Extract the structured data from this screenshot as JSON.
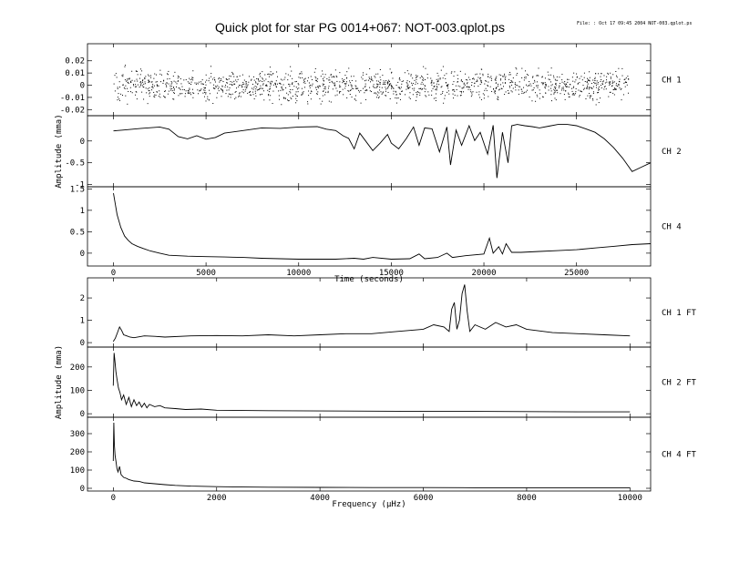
{
  "title": "Quick plot for star PG 0014+067:  NOT-003.qplot.ps",
  "file_info": "File: : Oct 17 09:45 2004   NOT-003.qplot.ps",
  "chart_data": [
    {
      "type": "scatter",
      "channel_label": "CH 1",
      "xlabel": "",
      "ylabel": "",
      "xlim": [
        -1400,
        29000
      ],
      "ylim": [
        -0.025,
        0.034
      ],
      "xticks": [
        0,
        5000,
        10000,
        15000,
        20000,
        25000
      ],
      "yticks": [
        -0.02,
        -0.01,
        0,
        0.01,
        0.02
      ],
      "ytick_labels": [
        "-0.02",
        "-0.01",
        "0",
        "0.01",
        "0.02"
      ],
      "x_range": [
        0,
        27800
      ],
      "noise_band": [
        -0.018,
        0.018
      ],
      "points": [
        [
          1200,
          0.012
        ],
        [
          4000,
          -0.006
        ],
        [
          8500,
          0.009
        ],
        [
          13000,
          -0.011
        ],
        [
          17500,
          0.004
        ],
        [
          22000,
          -0.003
        ],
        [
          26000,
          0.01
        ]
      ]
    },
    {
      "type": "line",
      "channel_label": "CH 2",
      "xlabel": "",
      "ylabel": "Amplitude (mma)",
      "xlim": [
        -1400,
        29000
      ],
      "ylim": [
        -1.05,
        0.58
      ],
      "xticks": [
        0,
        5000,
        10000,
        15000,
        20000,
        25000
      ],
      "yticks": [
        -1,
        -0.5,
        0
      ],
      "ytick_labels": [
        "-1",
        "-0.5",
        "0"
      ],
      "x": [
        0,
        500,
        1500,
        2500,
        3000,
        3500,
        4000,
        4500,
        5000,
        5500,
        6000,
        7000,
        8000,
        9000,
        10000,
        11000,
        11500,
        12000,
        12400,
        12700,
        13000,
        13300,
        13600,
        14000,
        14400,
        14800,
        15000,
        15400,
        15800,
        16200,
        16500,
        16800,
        17200,
        17600,
        18000,
        18200,
        18500,
        18800,
        19200,
        19500,
        19800,
        20200,
        20500,
        20700,
        21000,
        21300,
        21500,
        21800,
        22200,
        22600,
        23000,
        23500,
        24000,
        24500,
        25000,
        25500,
        26000,
        26500,
        27000,
        27500,
        28000,
        28500,
        29000
      ],
      "y": [
        0.23,
        0.25,
        0.29,
        0.32,
        0.27,
        0.1,
        0.05,
        0.12,
        0.04,
        0.08,
        0.18,
        0.24,
        0.3,
        0.29,
        0.32,
        0.33,
        0.27,
        0.24,
        0.12,
        0.06,
        -0.18,
        0.18,
        0.01,
        -0.22,
        -0.05,
        0.15,
        -0.05,
        -0.18,
        0.05,
        0.32,
        -0.1,
        0.3,
        0.28,
        -0.25,
        0.32,
        -0.55,
        0.25,
        -0.1,
        0.35,
        0.01,
        0.2,
        -0.3,
        0.36,
        -0.85,
        0.2,
        -0.5,
        0.35,
        0.38,
        0.35,
        0.33,
        0.3,
        0.34,
        0.38,
        0.38,
        0.35,
        0.28,
        0.2,
        0.05,
        -0.15,
        -0.4,
        -0.7,
        -0.6,
        -0.5
      ]
    },
    {
      "type": "line",
      "channel_label": "CH 4",
      "xlabel": "Time (seconds)",
      "ylabel": "",
      "xlim": [
        -1400,
        29000
      ],
      "ylim": [
        -0.3,
        1.55
      ],
      "xticks": [
        0,
        5000,
        10000,
        15000,
        20000,
        25000
      ],
      "xtick_labels": [
        "0",
        "5000",
        "10000",
        "15000",
        "20000",
        "25000"
      ],
      "yticks": [
        0,
        0.5,
        1,
        1.5
      ],
      "ytick_labels": [
        "0",
        "0.5",
        "1",
        "1.5"
      ],
      "x": [
        0,
        100,
        200,
        400,
        600,
        800,
        1000,
        1300,
        1600,
        2000,
        2500,
        3000,
        4000,
        5000,
        6000,
        7000,
        8000,
        9000,
        10000,
        11000,
        12000,
        13000,
        13500,
        14000,
        15000,
        16000,
        16500,
        16800,
        17500,
        18000,
        18300,
        19000,
        20000,
        20300,
        20500,
        20800,
        21000,
        21200,
        21500,
        22000,
        23000,
        24000,
        25000,
        26000,
        27000,
        28000,
        29000
      ],
      "y": [
        1.4,
        1.15,
        0.9,
        0.6,
        0.4,
        0.3,
        0.22,
        0.16,
        0.11,
        0.05,
        0.0,
        -0.05,
        -0.07,
        -0.08,
        -0.09,
        -0.1,
        -0.12,
        -0.13,
        -0.14,
        -0.14,
        -0.14,
        -0.12,
        -0.14,
        -0.1,
        -0.14,
        -0.13,
        -0.02,
        -0.13,
        -0.1,
        0.0,
        -0.1,
        -0.06,
        -0.02,
        0.35,
        0.0,
        0.15,
        -0.02,
        0.22,
        0.02,
        0.02,
        0.04,
        0.06,
        0.08,
        0.12,
        0.16,
        0.2,
        0.22
      ]
    },
    {
      "type": "line",
      "channel_label": "CH 1 FT",
      "xlabel": "",
      "ylabel": "",
      "xlim": [
        -500,
        10400
      ],
      "ylim": [
        -0.2,
        2.9
      ],
      "xticks": [
        0,
        2000,
        4000,
        6000,
        8000,
        10000
      ],
      "yticks": [
        0,
        1,
        2
      ],
      "ytick_labels": [
        "0",
        "1",
        "2"
      ],
      "x": [
        0,
        40,
        80,
        120,
        160,
        200,
        260,
        320,
        400,
        600,
        800,
        1000,
        1500,
        2000,
        2500,
        3000,
        3500,
        4000,
        4500,
        5000,
        5500,
        6000,
        6200,
        6400,
        6500,
        6550,
        6600,
        6650,
        6700,
        6750,
        6800,
        6850,
        6900,
        7000,
        7200,
        7400,
        7600,
        7800,
        8000,
        8500,
        9000,
        9500,
        10000
      ],
      "y": [
        0.05,
        0.2,
        0.45,
        0.7,
        0.55,
        0.35,
        0.3,
        0.25,
        0.22,
        0.3,
        0.28,
        0.25,
        0.3,
        0.32,
        0.3,
        0.35,
        0.3,
        0.35,
        0.4,
        0.4,
        0.5,
        0.6,
        0.8,
        0.7,
        0.5,
        1.5,
        1.8,
        0.6,
        1.0,
        2.2,
        2.6,
        1.4,
        0.5,
        0.8,
        0.6,
        0.9,
        0.7,
        0.8,
        0.6,
        0.45,
        0.4,
        0.35,
        0.3
      ]
    },
    {
      "type": "line",
      "channel_label": "CH 2 FT",
      "xlabel": "",
      "ylabel": "Amplitude (mma)",
      "xlim": [
        -500,
        10400
      ],
      "ylim": [
        -15,
        285
      ],
      "xticks": [
        0,
        2000,
        4000,
        6000,
        8000,
        10000
      ],
      "yticks": [
        0,
        100,
        200
      ],
      "ytick_labels": [
        "0",
        "100",
        "200"
      ],
      "x": [
        0,
        15,
        30,
        50,
        70,
        100,
        130,
        160,
        200,
        250,
        300,
        350,
        400,
        450,
        500,
        550,
        600,
        650,
        700,
        800,
        900,
        1000,
        1200,
        1400,
        1700,
        2000,
        2500,
        3000,
        4000,
        5000,
        6000,
        7000,
        8000,
        9000,
        10000
      ],
      "y": [
        120,
        260,
        230,
        180,
        150,
        110,
        90,
        60,
        80,
        40,
        70,
        30,
        60,
        35,
        50,
        28,
        45,
        25,
        40,
        30,
        35,
        25,
        22,
        18,
        20,
        15,
        14,
        13,
        12,
        11,
        10,
        10,
        9,
        8,
        8
      ]
    },
    {
      "type": "line",
      "channel_label": "CH 4 FT",
      "xlabel": "Frequency (µHz)",
      "ylabel": "",
      "xlim": [
        -500,
        10400
      ],
      "ylim": [
        -15,
        390
      ],
      "xticks": [
        0,
        2000,
        4000,
        6000,
        8000,
        10000
      ],
      "xtick_labels": [
        "0",
        "2000",
        "4000",
        "6000",
        "8000",
        "10000"
      ],
      "yticks": [
        0,
        100,
        200,
        300
      ],
      "ytick_labels": [
        "0",
        "100",
        "200",
        "300"
      ],
      "x": [
        0,
        10,
        20,
        35,
        50,
        70,
        90,
        120,
        150,
        200,
        250,
        300,
        400,
        500,
        600,
        800,
        1000,
        1200,
        1500,
        2000,
        2500,
        3000,
        4000,
        5000,
        6000,
        7000,
        8000,
        9000,
        10000
      ],
      "y": [
        150,
        360,
        240,
        180,
        150,
        110,
        90,
        120,
        75,
        60,
        55,
        48,
        40,
        38,
        30,
        25,
        20,
        16,
        12,
        9,
        7,
        6,
        5,
        4,
        4,
        3,
        3,
        3,
        3
      ]
    }
  ]
}
